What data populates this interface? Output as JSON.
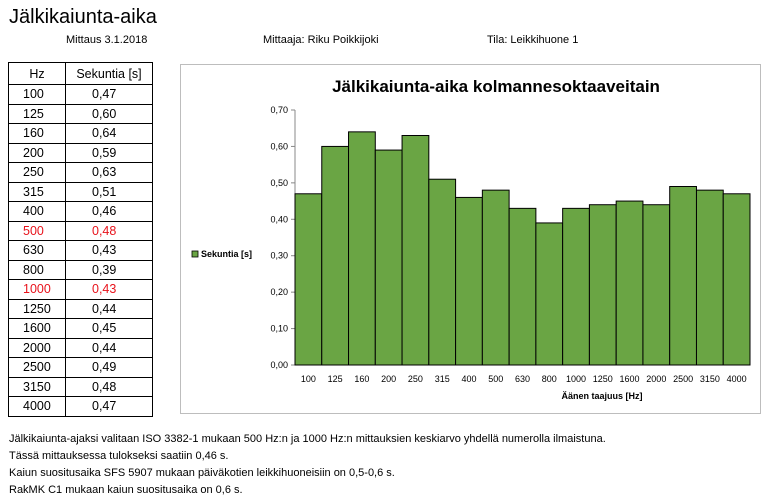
{
  "header": {
    "title": "Jälkikaiunta-aika",
    "date": "Mittaus 3.1.2018",
    "measurer": "Mittaaja: Riku Poikkijoki",
    "room": "Tila: Leikkihuone 1"
  },
  "table": {
    "headers": [
      "Hz",
      "Sekuntia [s]"
    ],
    "rows": [
      {
        "hz": "100",
        "sec": "0,47"
      },
      {
        "hz": "125",
        "sec": "0,60"
      },
      {
        "hz": "160",
        "sec": "0,64"
      },
      {
        "hz": "200",
        "sec": "0,59"
      },
      {
        "hz": "250",
        "sec": "0,63"
      },
      {
        "hz": "315",
        "sec": "0,51"
      },
      {
        "hz": "400",
        "sec": "0,46"
      },
      {
        "hz": "500",
        "sec": "0,48",
        "highlight": true
      },
      {
        "hz": "630",
        "sec": "0,43"
      },
      {
        "hz": "800",
        "sec": "0,39"
      },
      {
        "hz": "1000",
        "sec": "0,43",
        "highlight": true
      },
      {
        "hz": "1250",
        "sec": "0,44"
      },
      {
        "hz": "1600",
        "sec": "0,45"
      },
      {
        "hz": "2000",
        "sec": "0,44"
      },
      {
        "hz": "2500",
        "sec": "0,49"
      },
      {
        "hz": "3150",
        "sec": "0,48"
      },
      {
        "hz": "4000",
        "sec": "0,47"
      }
    ],
    "highlight_color": "#e8121b"
  },
  "chart_data": {
    "type": "bar",
    "title": "Jälkikaiunta-aika kolmannesoktaaveitain",
    "xlabel": "Äänen taajuus [Hz]",
    "ylabel": "",
    "categories": [
      "100",
      "125",
      "160",
      "200",
      "250",
      "315",
      "400",
      "500",
      "630",
      "800",
      "1000",
      "1250",
      "1600",
      "2000",
      "2500",
      "3150",
      "4000"
    ],
    "series": [
      {
        "name": "Sekuntia [s]",
        "values": [
          0.47,
          0.6,
          0.64,
          0.59,
          0.63,
          0.51,
          0.46,
          0.48,
          0.43,
          0.39,
          0.43,
          0.44,
          0.45,
          0.44,
          0.49,
          0.48,
          0.47
        ]
      }
    ],
    "ylim": [
      0,
      0.7
    ],
    "yticks": [
      "0,00",
      "0,10",
      "0,20",
      "0,30",
      "0,40",
      "0,50",
      "0,60",
      "0,70"
    ],
    "grid": false,
    "legend_position": "left",
    "bar_color": "#6aa544",
    "bar_edge_color": "#000000"
  },
  "notes": [
    "Jälkikaiunta-ajaksi valitaan ISO 3382-1 mukaan 500 Hz:n ja 1000 Hz:n mittauksien keskiarvo yhdellä numerolla ilmaistuna.",
    "Tässä mittauksessa tulokseksi saatiin  0,46 s.",
    "Kaiun suositusaika SFS 5907 mukaan päiväkotien leikkihuoneisiin on 0,5-0,6 s.",
    "RakMK C1 mukaan kaiun suositusaika on 0,6 s."
  ]
}
